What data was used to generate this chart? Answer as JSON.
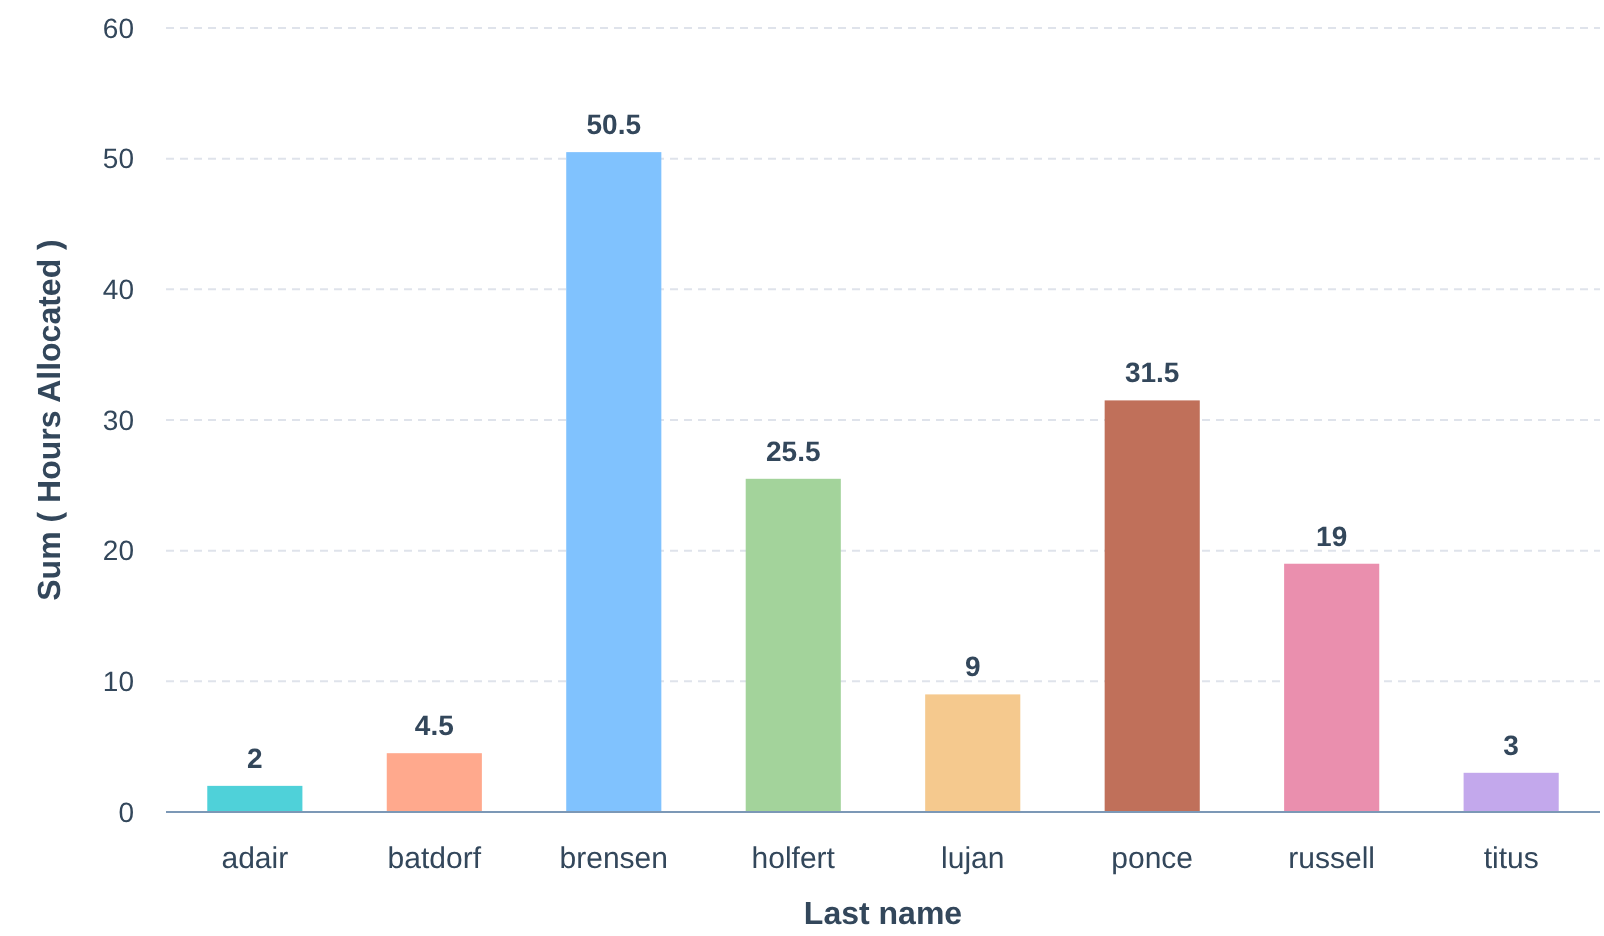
{
  "chart_data": {
    "type": "bar",
    "xlabel": "Last name",
    "ylabel": "Sum ( Hours Allocated )",
    "categories": [
      "adair",
      "batdorf",
      "brensen",
      "holfert",
      "lujan",
      "ponce",
      "russell",
      "titus"
    ],
    "values": [
      2,
      4.5,
      50.5,
      25.5,
      9,
      31.5,
      19,
      3
    ],
    "colors": [
      "#4fd1d9",
      "#ffa98d",
      "#80c2fe",
      "#a3d39b",
      "#f5c98e",
      "#c0705a",
      "#ea8fae",
      "#c3a8ec"
    ],
    "ylim": [
      0,
      60
    ],
    "yticks": [
      0,
      10,
      20,
      30,
      40,
      50,
      60
    ],
    "grid": "y",
    "data_labels": true
  }
}
